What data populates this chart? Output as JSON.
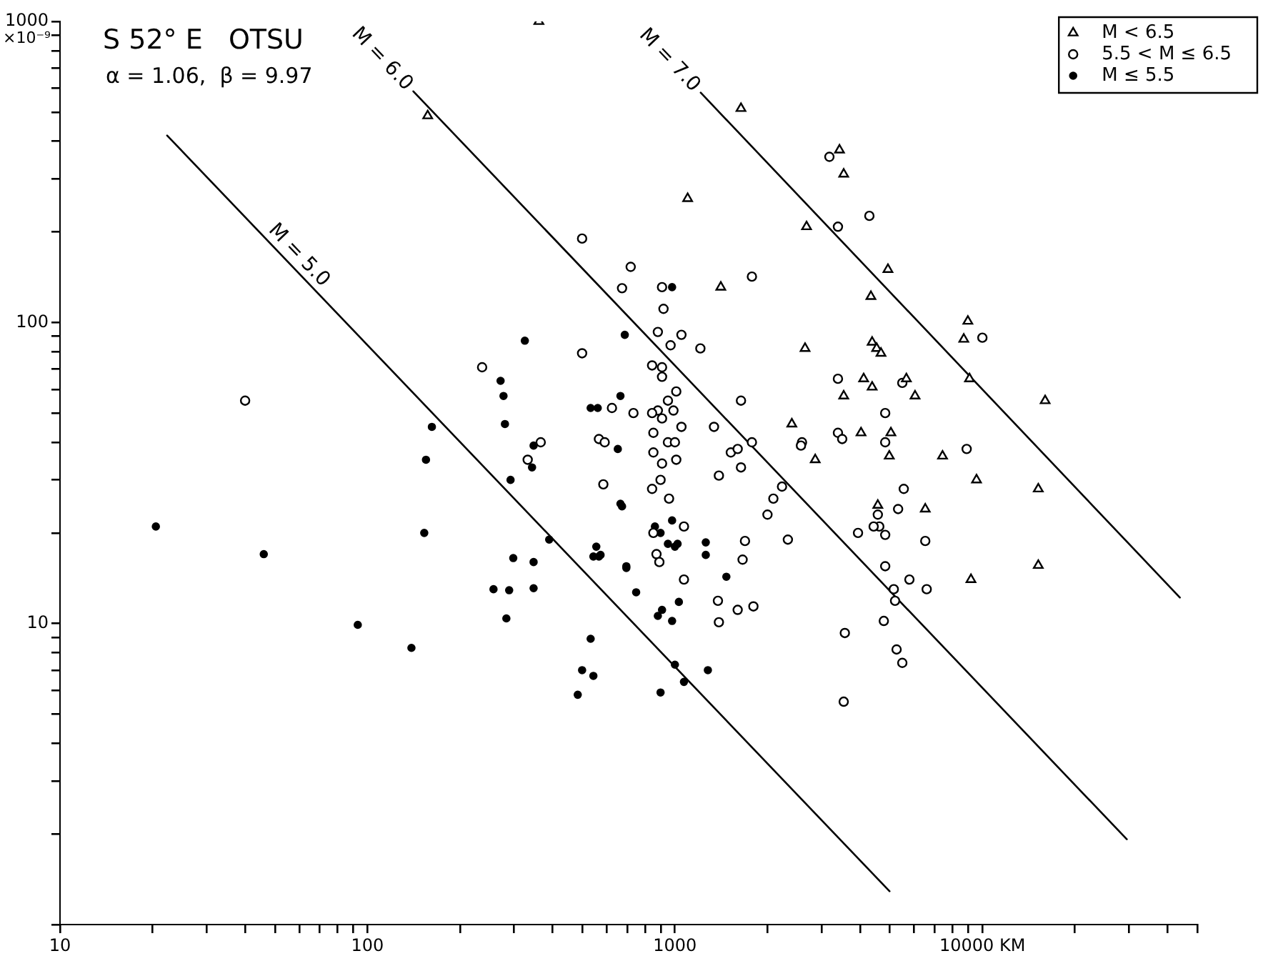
{
  "chart_data": {
    "type": "scatter",
    "title": "S 52° E   OTSU",
    "subtitle": "α = 1.06,  β = 9.97",
    "ylabel": "×10⁻⁹",
    "log": "xy",
    "grid": false,
    "legend": "top right",
    "marker": "circle",
    "xlim": [
      10,
      50000
    ],
    "ylim": [
      1,
      1000
    ],
    "xticks": [
      10,
      {
        "value": 20,
        "label": null
      },
      {
        "value": 30,
        "label": null
      },
      {
        "value": 40,
        "label": null
      },
      {
        "value": 50,
        "label": null
      },
      {
        "value": 60,
        "label": null
      },
      {
        "value": 70,
        "label": null
      },
      {
        "value": 80,
        "label": null
      },
      {
        "value": 90,
        "label": null
      },
      100,
      {
        "value": 200,
        "label": null
      },
      {
        "value": 300,
        "label": null
      },
      {
        "value": 400,
        "label": null
      },
      {
        "value": 500,
        "label": null
      },
      {
        "value": 600,
        "label": null
      },
      {
        "value": 700,
        "label": null
      },
      {
        "value": 800,
        "label": null
      },
      {
        "value": 900,
        "label": null
      },
      1000,
      {
        "value": 2000,
        "label": null
      },
      {
        "value": 3000,
        "label": null
      },
      {
        "value": 4000,
        "label": null
      },
      {
        "value": 5000,
        "label": null
      },
      {
        "value": 6000,
        "label": null
      },
      {
        "value": 7000,
        "label": null
      },
      {
        "value": 8000,
        "label": null
      },
      {
        "value": 9000,
        "label": null
      },
      {
        "value": 10000,
        "label": "10000 KM"
      },
      {
        "value": 20000,
        "label": null
      },
      {
        "value": 30000,
        "label": null
      },
      {
        "value": 40000,
        "label": null
      },
      {
        "value": 50000,
        "label": null
      }
    ],
    "yticks": [
      {
        "value": 1,
        "label": null
      },
      {
        "value": 2,
        "label": null
      },
      {
        "value": 3,
        "label": null
      },
      {
        "value": 4,
        "label": null
      },
      {
        "value": 5,
        "label": null
      },
      {
        "value": 6,
        "label": null
      },
      {
        "value": 7,
        "label": null
      },
      {
        "value": 8,
        "label": null
      },
      {
        "value": 9,
        "label": null
      },
      10,
      {
        "value": 20,
        "label": null
      },
      {
        "value": 30,
        "label": null
      },
      {
        "value": 40,
        "label": null
      },
      {
        "value": 50,
        "label": null
      },
      {
        "value": 60,
        "label": null
      },
      {
        "value": 70,
        "label": null
      },
      {
        "value": 80,
        "label": null
      },
      {
        "value": 90,
        "label": null
      },
      100,
      {
        "value": 200,
        "label": null
      },
      {
        "value": 300,
        "label": null
      },
      {
        "value": 400,
        "label": null
      },
      {
        "value": 500,
        "label": null
      },
      {
        "value": 600,
        "label": null
      },
      {
        "value": 700,
        "label": null
      },
      {
        "value": 800,
        "label": null
      },
      {
        "value": 900,
        "label": null
      },
      1000
    ],
    "series": [
      {
        "name": "M < 6.5",
        "marker": "triangle",
        "color": "#000000",
        "x": [
          361,
          157,
          1640,
          3430,
          3540,
          1100,
          2680,
          4930,
          4340,
          8970,
          8700,
          2650,
          4380,
          4530,
          4680,
          9080,
          16000,
          4110,
          4380,
          3540,
          5660,
          6040,
          2400,
          4030,
          5040,
          2860,
          4980,
          7420,
          9570,
          15200,
          1410,
          6520,
          15200,
          9180,
          4570
        ],
        "values": [
          1000,
          486,
          514,
          374,
          311,
          258,
          208,
          150,
          122,
          101,
          88,
          82,
          86,
          82,
          79,
          65,
          55,
          65,
          61,
          57,
          65,
          57,
          46,
          43,
          43,
          35,
          36,
          36,
          30,
          28,
          131,
          24,
          15.6,
          14,
          24.7
        ]
      },
      {
        "name": "5.5 < M ≤ 6.5",
        "marker": "circle",
        "color": "#000000",
        "x": [
          3180,
          4290,
          3390,
          10000,
          718,
          673,
          908,
          1780,
          918,
          880,
          968,
          1050,
          1210,
          843,
          908,
          908,
          1010,
          949,
          880,
          989,
          843,
          908,
          733,
          624,
          1050,
          851,
          949,
          1000,
          1340,
          1640,
          851,
          908,
          1010,
          585,
          1390,
          1640,
          1520,
          1600,
          1780,
          2230,
          2090,
          3390,
          3390,
          3500,
          2590,
          2570,
          4830,
          4830,
          5550,
          8890,
          5490,
          843,
          898,
          957,
          5320,
          2000,
          4570,
          4620,
          4430,
          3940,
          4830,
          6520,
          1690,
          2330,
          1070,
          851,
          871,
          890,
          1660,
          1070,
          4830,
          5790,
          6590,
          5150,
          5200,
          1380,
          1600,
          1800,
          1390,
          4780,
          3570,
          5260,
          5490,
          3540,
          40,
          499,
          499,
          236,
          566,
          591,
          366,
          332
        ],
        "values": [
          355,
          226,
          208,
          89,
          153,
          130,
          131,
          142,
          111,
          93,
          84,
          91,
          82,
          72,
          71,
          66,
          59,
          55,
          51,
          51,
          50,
          48,
          50,
          52,
          45,
          43,
          40,
          40,
          45,
          55,
          37,
          34,
          35,
          29,
          31,
          33,
          37,
          38,
          40,
          28.5,
          26,
          65,
          43,
          41,
          40,
          39,
          50,
          40,
          28,
          38,
          63,
          28,
          30,
          26,
          24,
          23,
          23,
          21,
          21,
          20,
          19.7,
          18.8,
          18.8,
          19,
          21,
          20,
          17,
          16,
          16.3,
          14,
          15.5,
          14,
          13,
          13,
          11.9,
          11.9,
          11.1,
          11.4,
          10.1,
          10.2,
          9.3,
          8.2,
          7.4,
          5.5,
          55,
          190,
          79,
          71,
          41,
          40,
          40,
          35
        ]
      },
      {
        "name": "M ≤ 5.5",
        "color": "#000000",
        "x": [
          325,
          271,
          277,
          280,
          162,
          155,
          292,
          687,
          665,
          532,
          561,
          652,
          347,
          343,
          20.5,
          46,
          93,
          139,
          153,
          390,
          298,
          347,
          257,
          289,
          347,
          283,
          555,
          543,
          566,
          695,
          532,
          499,
          543,
          483,
          673,
          979,
          665,
          979,
          861,
          898,
          949,
          1000,
          1020,
          573,
          695,
          1260,
          1260,
          748,
          1470,
          1030,
          908,
          880,
          979,
          1000,
          1280,
          898,
          1070
        ],
        "values": [
          87,
          64,
          57,
          46,
          45,
          35,
          30,
          91,
          57,
          52,
          52,
          38,
          39,
          33,
          21,
          17,
          9.9,
          8.3,
          20,
          19,
          16.5,
          16,
          13,
          12.9,
          13.1,
          10.4,
          18,
          16.7,
          16.7,
          15.5,
          8.9,
          7,
          6.7,
          5.8,
          24.5,
          131,
          25,
          22,
          21,
          20,
          18.4,
          18,
          18.4,
          16.9,
          15.3,
          18.6,
          16.9,
          12.7,
          14.3,
          11.8,
          11.1,
          10.6,
          10.2,
          7.3,
          7,
          5.9,
          6.4
        ]
      },
      {
        "name": "M = 5.0",
        "type": "line",
        "marker": "none",
        "color": "#000000",
        "x": [
          22.3,
          4990
        ],
        "values": [
          418,
          1.29
        ]
      },
      {
        "name": "M = 6.0",
        "type": "line",
        "marker": "none",
        "color": "#000000",
        "x": [
          141,
          29500
        ],
        "values": [
          586,
          1.92
        ]
      },
      {
        "name": "M = 7.0",
        "type": "line",
        "marker": "none",
        "color": "#000000",
        "x": [
          1213,
          43900
        ],
        "values": [
          580,
          12.2
        ]
      }
    ]
  }
}
